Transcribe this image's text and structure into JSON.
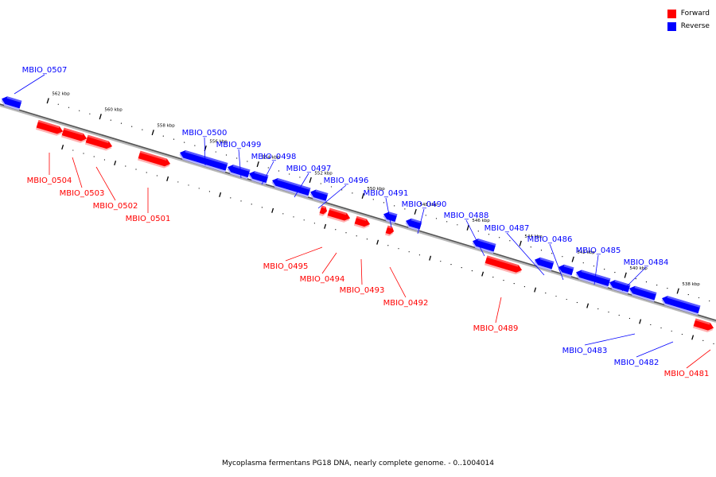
{
  "caption": "Mycoplasma fermentans PG18 DNA, nearly complete genome. - 0..1004014",
  "legend": [
    {
      "label": "Forward",
      "color": "#ff0000"
    },
    {
      "label": "Reverse",
      "color": "#0000ff"
    }
  ],
  "colors": {
    "forward": "#ff0000",
    "reverse": "#0000ff",
    "axis": "#555555"
  },
  "scale": {
    "unit": "kbp",
    "ticks": [
      562,
      560,
      558,
      556,
      554,
      552,
      550,
      548,
      546,
      544,
      542,
      540,
      538
    ]
  },
  "genes": [
    {
      "name": "MBIO_0507",
      "strand": "reverse"
    },
    {
      "name": "MBIO_0504",
      "strand": "forward"
    },
    {
      "name": "MBIO_0503",
      "strand": "forward"
    },
    {
      "name": "MBIO_0502",
      "strand": "forward"
    },
    {
      "name": "MBIO_0501",
      "strand": "forward"
    },
    {
      "name": "MBIO_0500",
      "strand": "reverse"
    },
    {
      "name": "MBIO_0499",
      "strand": "reverse"
    },
    {
      "name": "MBIO_0498",
      "strand": "reverse"
    },
    {
      "name": "MBIO_0497",
      "strand": "reverse"
    },
    {
      "name": "MBIO_0496",
      "strand": "reverse"
    },
    {
      "name": "MBIO_0495",
      "strand": "forward"
    },
    {
      "name": "MBIO_0494",
      "strand": "forward"
    },
    {
      "name": "MBIO_0493",
      "strand": "forward"
    },
    {
      "name": "MBIO_0492",
      "strand": "forward"
    },
    {
      "name": "MBIO_0491",
      "strand": "reverse"
    },
    {
      "name": "MBIO_0490",
      "strand": "reverse"
    },
    {
      "name": "MBIO_0489",
      "strand": "forward"
    },
    {
      "name": "MBIO_0488",
      "strand": "reverse"
    },
    {
      "name": "MBIO_0487",
      "strand": "reverse"
    },
    {
      "name": "MBIO_0486",
      "strand": "reverse"
    },
    {
      "name": "MBIO_0485",
      "strand": "reverse"
    },
    {
      "name": "MBIO_0484",
      "strand": "reverse"
    },
    {
      "name": "MBIO_0483",
      "strand": "reverse"
    },
    {
      "name": "MBIO_0482",
      "strand": "reverse"
    },
    {
      "name": "MBIO_0481",
      "strand": "forward"
    }
  ]
}
